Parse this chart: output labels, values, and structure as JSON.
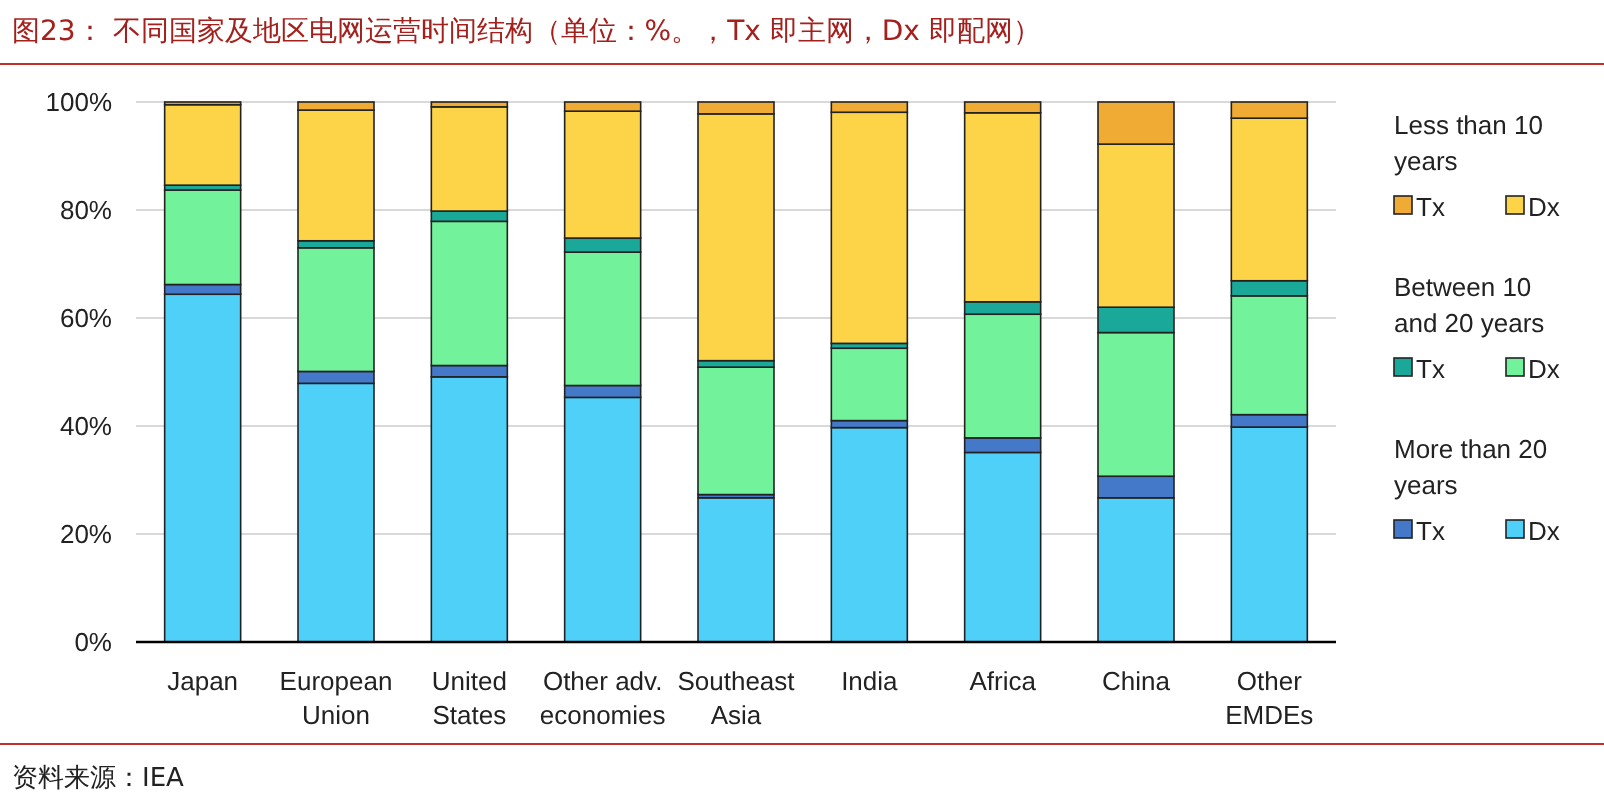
{
  "chart_data": {
    "type": "bar",
    "stacked": true,
    "title": "图23：  不同国家及地区电网运营时间结构（单位：%。，Tx 即主网，Dx 即配网）",
    "categories": [
      "Japan",
      "European Union",
      "United States",
      "Other adv. economies",
      "Southeast Asia",
      "India",
      "Africa",
      "China",
      "Other EMDEs"
    ],
    "series": [
      {
        "name": "Dx",
        "color": "#4fd0f8",
        "values": [
          64.4,
          47.9,
          49.1,
          45.3,
          26.7,
          39.7,
          35.1,
          26.7,
          39.8
        ]
      },
      {
        "name": "Tx",
        "color": "#4478c8",
        "values": [
          1.8,
          2.2,
          2.1,
          2.2,
          0.6,
          1.3,
          2.7,
          4.0,
          2.3
        ]
      },
      {
        "name": "Dx",
        "color": "#72f29a",
        "values": [
          17.5,
          22.9,
          26.7,
          24.7,
          23.6,
          13.4,
          22.9,
          26.6,
          22.0
        ]
      },
      {
        "name": "Tx",
        "color": "#1aa898",
        "values": [
          0.9,
          1.3,
          1.9,
          2.6,
          1.2,
          0.9,
          2.3,
          4.7,
          2.8
        ]
      },
      {
        "name": "Dx",
        "color": "#fdd448",
        "values": [
          14.9,
          24.2,
          19.3,
          23.5,
          45.7,
          42.8,
          35.0,
          30.2,
          30.1
        ]
      },
      {
        "name": "Tx",
        "color": "#efab33",
        "values": [
          0.5,
          1.5,
          0.9,
          1.7,
          2.2,
          1.9,
          2.0,
          7.8,
          3.0
        ]
      }
    ],
    "ylim": [
      0,
      100
    ],
    "yticks": [
      {
        "value": 0,
        "label": "0%"
      },
      {
        "value": 20,
        "label": "20%"
      },
      {
        "value": 40,
        "label": "40%"
      },
      {
        "value": 60,
        "label": "60%"
      },
      {
        "value": 80,
        "label": "80%"
      },
      {
        "value": 100,
        "label": "100%"
      }
    ],
    "grid": "y",
    "legend": "right",
    "annotations": [
      "More than 20 years",
      "Between 10 and 20 years",
      "Less than 10 years",
      "资料来源：IEA"
    ]
  }
}
